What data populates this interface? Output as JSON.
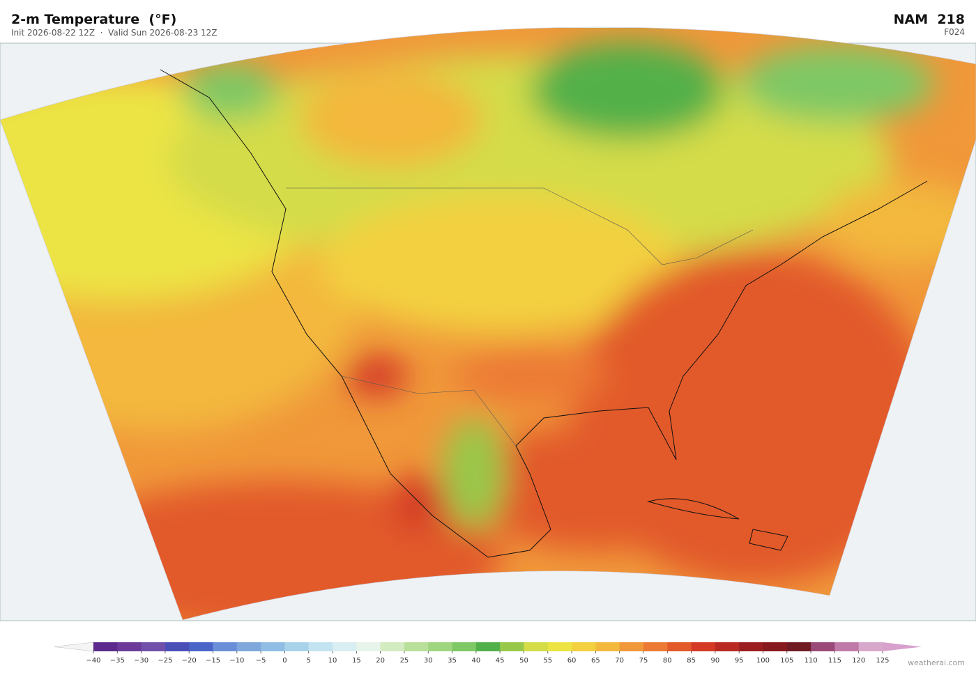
{
  "header": {
    "title": "2-m Temperature  (°F)",
    "subtitle": "Init 2026-08-22 12Z  ·  Valid Sun 2026-08-23 12Z",
    "model": "NAM  218",
    "forecast_hour": "F024"
  },
  "colorbar": {
    "ticks": [
      {
        "value": -40,
        "label": "−40"
      },
      {
        "value": -35,
        "label": "−35"
      },
      {
        "value": -30,
        "label": "−30"
      },
      {
        "value": -25,
        "label": "−25"
      },
      {
        "value": -20,
        "label": "−20"
      },
      {
        "value": -15,
        "label": "−15"
      },
      {
        "value": -10,
        "label": "−10"
      },
      {
        "value": -5,
        "label": "−5"
      },
      0,
      5,
      10,
      15,
      20,
      25,
      30,
      35,
      40,
      45,
      50,
      55,
      60,
      65,
      70,
      75,
      80,
      85,
      90,
      95,
      100,
      105,
      110,
      115,
      120,
      125
    ],
    "colors": [
      "#5b2a8c",
      "#6b3a9a",
      "#7050a8",
      "#4a4fb8",
      "#4a64c8",
      "#6a8fd8",
      "#7ea7dc",
      "#8fbde3",
      "#a8d2ea",
      "#c3e3f0",
      "#d9eef2",
      "#e6f4ea",
      "#d3ebc0",
      "#b8e09a",
      "#9ed57e",
      "#7ec865",
      "#52b04a",
      "#98c84a",
      "#d4dc48",
      "#ece444",
      "#f3d040",
      "#f3b83e",
      "#f0983a",
      "#ec7a35",
      "#e25a2a",
      "#d43a25",
      "#b82a22",
      "#9a1e20",
      "#861a1e",
      "#701a22",
      "#9a4a78",
      "#c07aa8",
      "#d8a8cc"
    ],
    "under_color": "#f4f4f4",
    "over_color": "#d8a0cc"
  },
  "watermark": "weatherai.com"
}
